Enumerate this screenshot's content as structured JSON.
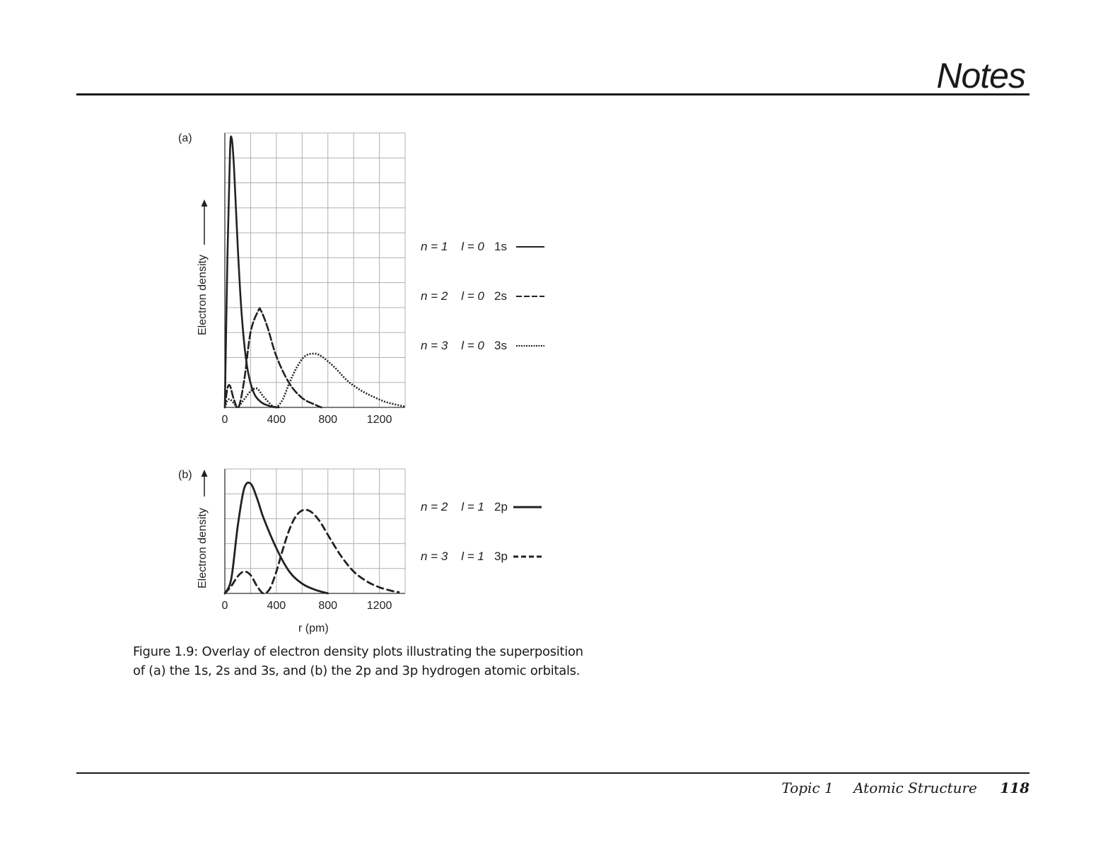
{
  "header": {
    "title": "Notes"
  },
  "footer": {
    "topic": "Topic 1",
    "section": "Atomic Structure",
    "page": "118"
  },
  "caption": {
    "line1": "Figure 1.9: Overlay of electron density plots illustrating the superposition",
    "line2": "of (a) the 1s, 2s and 3s, and (b) the 2p and 3p hydrogen atomic orbitals."
  },
  "chart_data": [
    {
      "type": "line",
      "panel": "(a)",
      "ylabel": "Electron density",
      "xlabel": "",
      "xlim": [
        0,
        1400
      ],
      "x_ticks": [
        "0",
        "400",
        "800",
        "1200"
      ],
      "grid": true,
      "legend_placement": "right",
      "series": [
        {
          "name": "1s",
          "n": "n = 1",
          "l": "l = 0",
          "style": "solid",
          "x": [
            0,
            20,
            40,
            53,
            70,
            100,
            130,
            170,
            220,
            280,
            350,
            420
          ],
          "y": [
            0,
            0.55,
            0.95,
            1.0,
            0.9,
            0.6,
            0.35,
            0.16,
            0.06,
            0.02,
            0.005,
            0
          ]
        },
        {
          "name": "2s",
          "n": "n = 2",
          "l": "l = 0",
          "style": "dashed",
          "x": [
            0,
            20,
            40,
            70,
            106,
            150,
            200,
            260,
            280,
            330,
            400,
            500,
            600,
            700,
            750
          ],
          "y": [
            0,
            0.07,
            0.08,
            0.03,
            0,
            0.1,
            0.28,
            0.36,
            0.36,
            0.3,
            0.19,
            0.09,
            0.035,
            0.01,
            0
          ]
        },
        {
          "name": "3s",
          "n": "n = 3",
          "l": "l = 0",
          "style": "dotted",
          "x": [
            0,
            20,
            40,
            70,
            100,
            150,
            200,
            250,
            300,
            370,
            400,
            450,
            500,
            560,
            620,
            690,
            750,
            850,
            950,
            1050,
            1150,
            1250,
            1350,
            1400
          ],
          "y": [
            0,
            0.025,
            0.03,
            0.015,
            0.002,
            0.03,
            0.06,
            0.07,
            0.04,
            0.005,
            0,
            0.03,
            0.09,
            0.15,
            0.19,
            0.2,
            0.19,
            0.15,
            0.1,
            0.065,
            0.04,
            0.02,
            0.008,
            0.003
          ]
        }
      ]
    },
    {
      "type": "line",
      "panel": "(b)",
      "ylabel": "Electron density",
      "xlabel": "r (pm)",
      "xlim": [
        0,
        1400
      ],
      "x_ticks": [
        "0",
        "400",
        "800",
        "1200"
      ],
      "grid": true,
      "legend_placement": "right",
      "series": [
        {
          "name": "2p",
          "n": "n = 2",
          "l": "l = 1",
          "style": "solid",
          "x": [
            0,
            50,
            100,
            150,
            200,
            250,
            300,
            400,
            500,
            600,
            700,
            800
          ],
          "y": [
            0,
            0.12,
            0.55,
            0.86,
            0.9,
            0.78,
            0.62,
            0.37,
            0.18,
            0.08,
            0.03,
            0
          ]
        },
        {
          "name": "3p",
          "n": "n = 3",
          "l": "l = 1",
          "style": "dashed",
          "x": [
            0,
            50,
            100,
            150,
            200,
            250,
            300,
            350,
            400,
            450,
            500,
            550,
            600,
            650,
            700,
            750,
            800,
            900,
            1000,
            1100,
            1200,
            1300,
            1350
          ],
          "y": [
            0,
            0.06,
            0.14,
            0.18,
            0.15,
            0.06,
            0,
            0.04,
            0.18,
            0.36,
            0.52,
            0.63,
            0.68,
            0.68,
            0.64,
            0.57,
            0.48,
            0.31,
            0.18,
            0.1,
            0.05,
            0.02,
            0.01
          ]
        }
      ]
    }
  ]
}
